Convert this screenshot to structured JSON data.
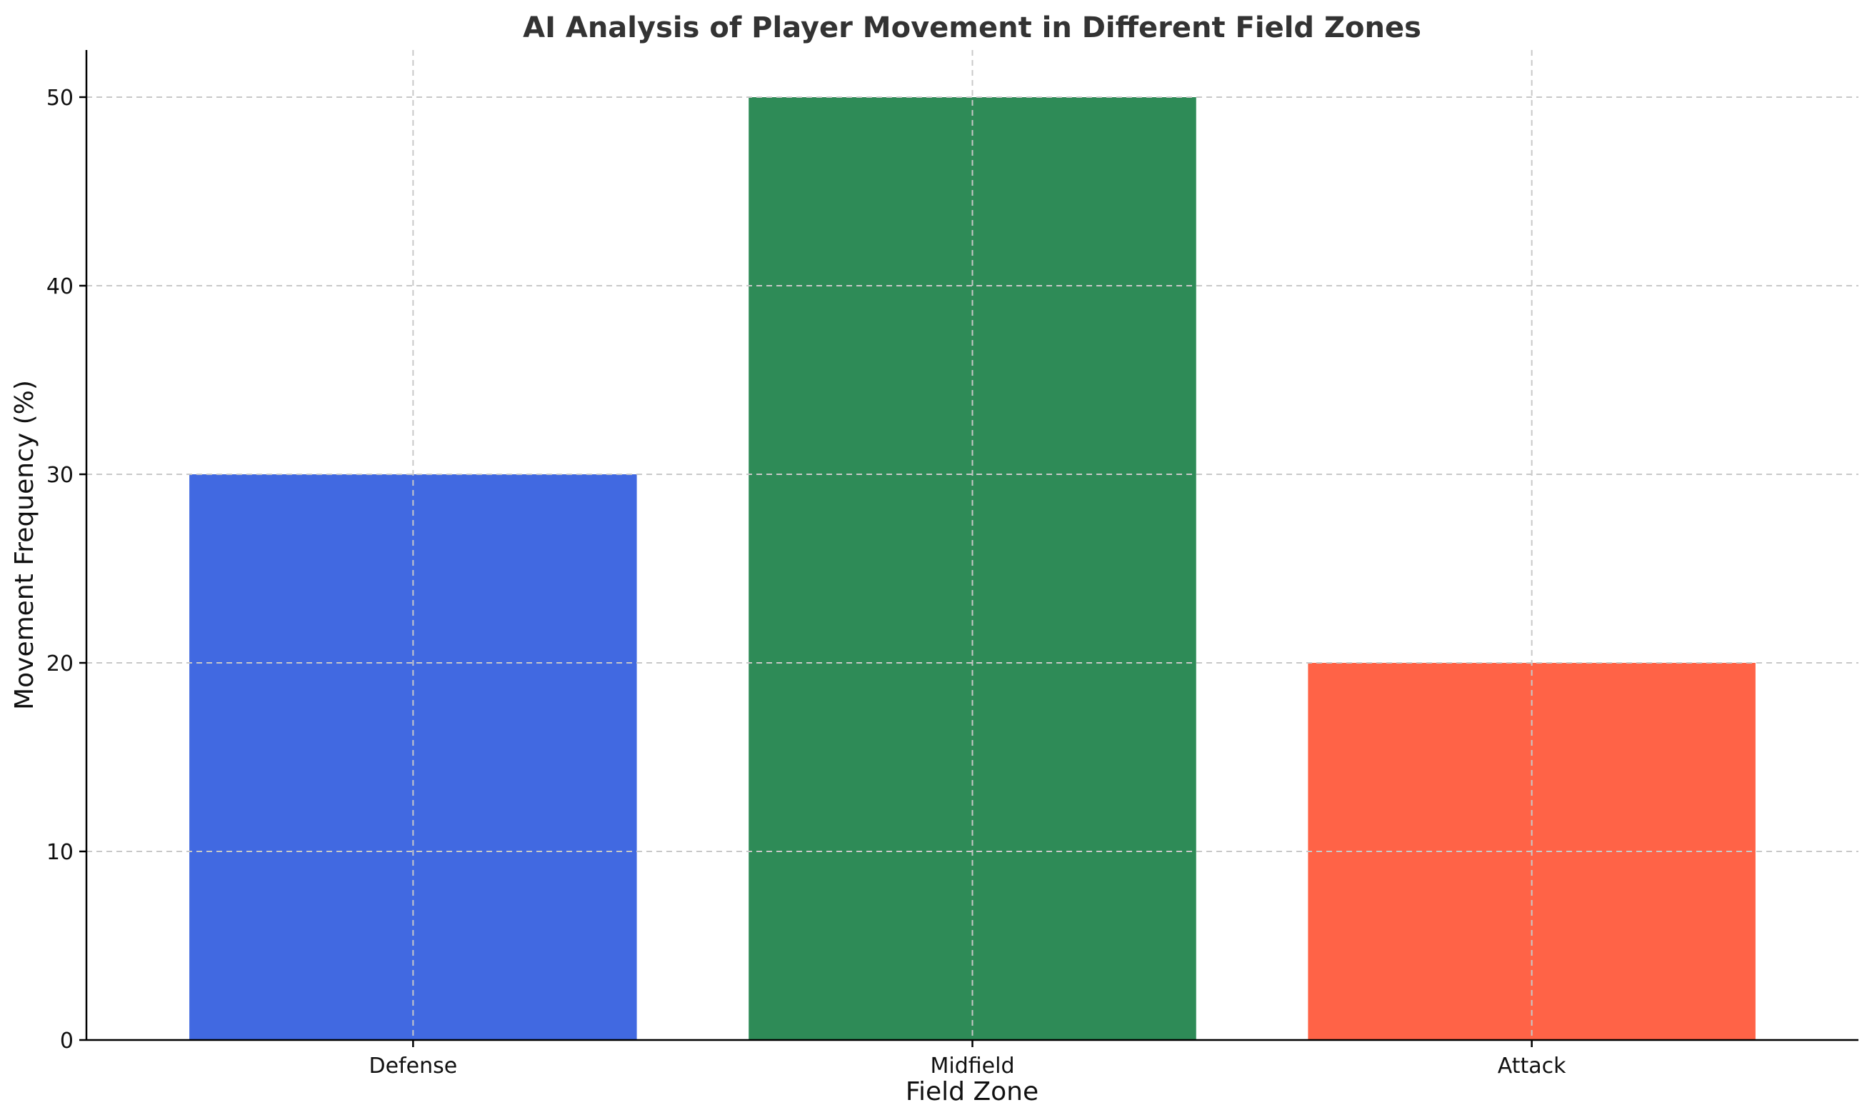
{
  "chart_data": {
    "type": "bar",
    "title": "AI Analysis of Player Movement in Different Field Zones",
    "xlabel": "Field Zone",
    "ylabel": "Movement Frequency (%)",
    "categories": [
      "Defense",
      "Midfield",
      "Attack"
    ],
    "values": [
      30,
      50,
      20
    ],
    "colors": [
      "#4169e1",
      "#2e8b57",
      "#ff6347"
    ],
    "ylim": [
      0,
      52.5
    ],
    "yticks": [
      0,
      10,
      20,
      30,
      40,
      50
    ],
    "grid": true,
    "legend": "none"
  }
}
